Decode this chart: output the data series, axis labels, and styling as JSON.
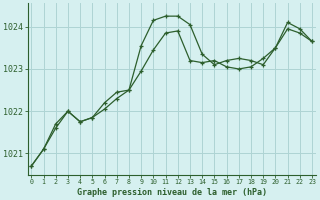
{
  "hours": [
    0,
    1,
    2,
    3,
    4,
    5,
    6,
    7,
    8,
    9,
    10,
    11,
    12,
    13,
    14,
    15,
    16,
    17,
    18,
    19,
    20,
    21,
    22,
    23
  ],
  "series1": [
    1020.7,
    1021.1,
    1021.7,
    1022.0,
    1021.75,
    1021.85,
    1022.2,
    1022.45,
    1022.5,
    1022.95,
    1023.45,
    1023.85,
    1023.9,
    1023.2,
    1023.15,
    1023.2,
    1023.05,
    1023.0,
    1023.05,
    1023.25,
    1023.5,
    1023.95,
    1023.85,
    1023.65
  ],
  "series2": [
    1020.7,
    1021.1,
    1021.6,
    1022.0,
    1021.75,
    1021.85,
    1022.05,
    1022.3,
    1022.5,
    1023.55,
    1024.15,
    1024.25,
    1024.25,
    1024.05,
    1023.35,
    1023.1,
    1023.2,
    1023.25,
    1023.2,
    1023.1,
    1023.5,
    1024.1,
    1023.95,
    1023.65
  ],
  "line_color": "#2d5f2d",
  "bg_color": "#d6f0f0",
  "grid_color": "#aed4d4",
  "axis_color": "#2d5f2d",
  "label": "Graphe pression niveau de la mer (hPa)",
  "ylim_min": 1020.5,
  "ylim_max": 1024.55,
  "yticks": [
    1021,
    1022,
    1023,
    1024
  ],
  "figw": 3.2,
  "figh": 2.0,
  "dpi": 100
}
